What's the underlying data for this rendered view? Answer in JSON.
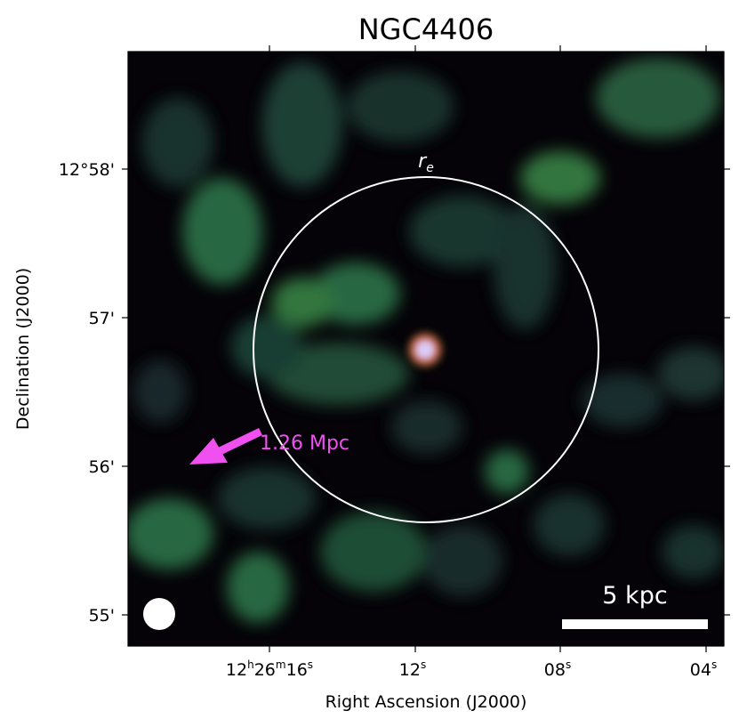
{
  "title": "NGC4406",
  "xlabel": "Right Ascension (J2000)",
  "ylabel": "Declination (J2000)",
  "xticks": [
    {
      "h": "12",
      "m": "26",
      "s": "16",
      "full": true
    },
    {
      "s": "12",
      "full": false
    },
    {
      "s": "08",
      "full": false
    },
    {
      "s": "04",
      "full": false
    }
  ],
  "yticks": [
    "12°58'",
    "57'",
    "56'",
    "55'"
  ],
  "annotations": {
    "re_label": "r",
    "re_sub": "e",
    "distance_label": "1.26 Mpc",
    "scalebar_label": "5 kpc"
  },
  "colors": {
    "background_map": "#050307",
    "emission_green": "#2f7a4d",
    "arrow": "#f050f0",
    "circle": "#ffffff",
    "hotspot": "#c0a0e0"
  }
}
